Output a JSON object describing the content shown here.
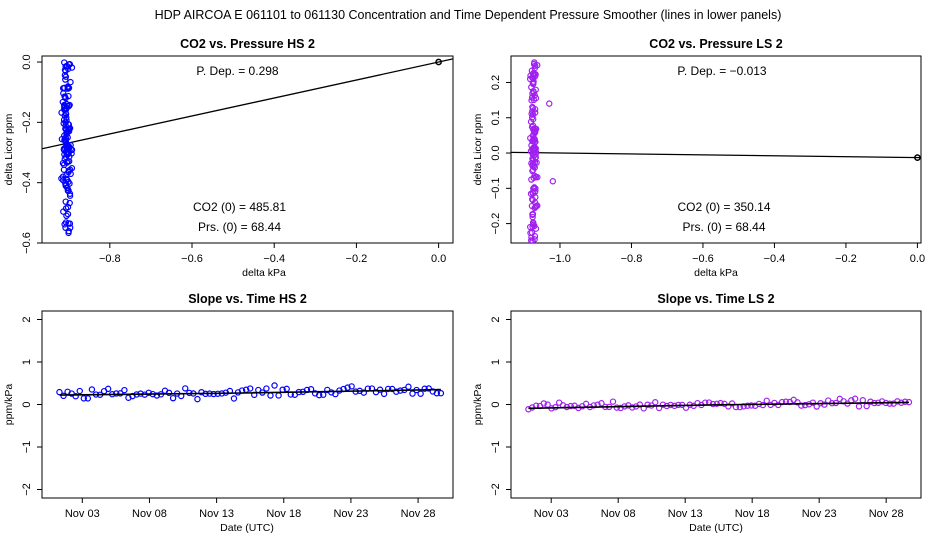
{
  "title": "HDP    AIRCOA E    061101 to 061130   Concentration and Time Dependent Pressure Smoother (lines in lower panels)",
  "colors": {
    "hs": "#0000ff",
    "ls": "#a020f0",
    "line": "#000000"
  },
  "chart_data": [
    {
      "id": "p1",
      "type": "scatter",
      "title": "CO2 vs. Pressure HS 2",
      "xlabel": "delta kPa",
      "ylabel": "delta Licor ppm",
      "xlim": [
        -0.965,
        0.035
      ],
      "ylim": [
        -0.6,
        0.02
      ],
      "xticks": [
        -0.8,
        -0.6,
        -0.4,
        -0.2,
        0.0
      ],
      "xtick_labels": [
        "−0.8",
        "−0.6",
        "−0.4",
        "−0.2",
        "0.0"
      ],
      "yticks": [
        0.0,
        -0.2,
        -0.4,
        -0.6
      ],
      "ytick_labels": [
        "0.0",
        "−0.2",
        "−0.4",
        "−0.6"
      ],
      "annotations": {
        "pdep": "P. Dep. =  0.298",
        "co2_0": "CO2 (0) =  485.81",
        "prs_0": "Prs. (0) =  68.44"
      },
      "point_color": "#0000ff",
      "cluster": {
        "x_center": -0.905,
        "x_spread": 0.016,
        "y_min": -0.57,
        "y_max": 0.0,
        "count": 140
      },
      "origin_point": [
        0.0,
        0.0
      ],
      "fit_line": {
        "slope": 0.298,
        "intercept": 0.0
      }
    },
    {
      "id": "p2",
      "type": "scatter",
      "title": "CO2 vs. Pressure LS 2",
      "xlabel": "delta kPa",
      "ylabel": "delta Licor ppm",
      "xlim": [
        -1.137,
        0.01
      ],
      "ylim": [
        -0.255,
        0.275
      ],
      "xticks": [
        -1.0,
        -0.8,
        -0.6,
        -0.4,
        -0.2,
        0.0
      ],
      "xtick_labels": [
        "−1.0",
        "−0.8",
        "−0.6",
        "−0.4",
        "−0.2",
        "0.0"
      ],
      "yticks": [
        -0.2,
        -0.1,
        0.0,
        0.1,
        0.2
      ],
      "ytick_labels": [
        "−0.2",
        "−0.1",
        "0.0",
        "0.1",
        "0.2"
      ],
      "annotations": {
        "pdep": "P. Dep. =  −0.013",
        "co2_0": "CO2 (0) =  350.14",
        "prs_0": "Prs. (0) =  68.44"
      },
      "point_color": "#a020f0",
      "cluster": {
        "x_center": -1.073,
        "x_spread": 0.013,
        "y_min": -0.25,
        "y_max": 0.27,
        "count": 140
      },
      "extra_points": [
        [
          -1.03,
          0.14
        ],
        [
          -1.02,
          -0.08
        ]
      ],
      "origin_point": [
        0.0,
        -0.013
      ],
      "fit_line": {
        "slope": -0.013,
        "intercept": -0.013
      }
    },
    {
      "id": "p3",
      "type": "line",
      "title": "Slope vs. Time HS 2",
      "xlabel": "Date (UTC)",
      "ylabel": "ppm/kPa",
      "xlim": [
        -1.0,
        29.6
      ],
      "ylim": [
        -2.2,
        2.2
      ],
      "xticks": [
        2,
        7,
        12,
        17,
        22,
        27
      ],
      "xtick_labels": [
        "Nov 03",
        "Nov 08",
        "Nov 13",
        "Nov 18",
        "Nov 23",
        "Nov 28"
      ],
      "yticks": [
        -2,
        -1,
        0,
        1,
        2
      ],
      "ytick_labels": [
        "−2",
        "−1",
        "0",
        "1",
        "2"
      ],
      "point_color": "#0000ff",
      "series": {
        "x_start": 0.3,
        "x_end": 28.7,
        "count": 95,
        "mean": 0.29,
        "spread": 0.12
      },
      "smoother": {
        "x": [
          0.3,
          14.0,
          28.7
        ],
        "y": [
          0.22,
          0.27,
          0.35
        ]
      }
    },
    {
      "id": "p4",
      "type": "line",
      "title": "Slope vs. Time LS 2",
      "xlabel": "Date (UTC)",
      "ylabel": "ppm/kPa",
      "xlim": [
        -1.0,
        29.6
      ],
      "ylim": [
        -2.2,
        2.2
      ],
      "xticks": [
        2,
        7,
        12,
        17,
        22,
        27
      ],
      "xtick_labels": [
        "Nov 03",
        "Nov 08",
        "Nov 13",
        "Nov 18",
        "Nov 23",
        "Nov 28"
      ],
      "yticks": [
        -2,
        -1,
        0,
        1,
        2
      ],
      "ytick_labels": [
        "−2",
        "−1",
        "0",
        "1",
        "2"
      ],
      "point_color": "#a020f0",
      "series": {
        "x_start": 0.3,
        "x_end": 28.7,
        "count": 100,
        "mean": 0.0,
        "spread": 0.09
      },
      "smoother": {
        "x": [
          0.3,
          14.0,
          28.7
        ],
        "y": [
          -0.09,
          -0.01,
          0.05
        ]
      }
    }
  ]
}
